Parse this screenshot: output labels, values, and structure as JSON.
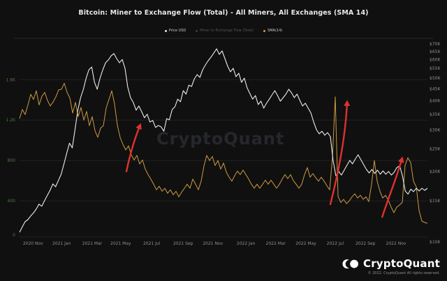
{
  "header": {
    "title": "Bitcoin: Miner to Exchange Flow (Total) - All Miners, All Exchanges (SMA 14)"
  },
  "legend": {
    "items": [
      {
        "label": "Price USD",
        "color": "#e8e8e8",
        "active": true
      },
      {
        "label": "Miner to Exchange Flow (Total)",
        "color": "#3d3d3d",
        "active": false
      },
      {
        "label": "SMA(14)",
        "color": "#d29b43",
        "active": true
      }
    ]
  },
  "watermark": {
    "text": "CryptoQuant"
  },
  "footer": {
    "brand": "CryptoQuant",
    "copyright": "© 2022. CryptoQuant All rights reserved."
  },
  "theme": {
    "background": "#101010",
    "grid": "#222222",
    "rule": "#282828",
    "axis_text": "#8f8f8f",
    "left_axis_text": "#4d7a44",
    "price_color": "#ececec",
    "sma_color": "#cd9a44",
    "arrow_color": "#e0312e"
  },
  "chart_data": {
    "type": "line",
    "title": "Bitcoin: Miner to Exchange Flow (Total) - All Miners, All Exchanges (SMA 14)",
    "x_range": "Oct 2020 - Dec 2022",
    "grid": "horizontal",
    "legend_position": "top-center",
    "x_axis": {
      "ticks": [
        {
          "label": "2020 Nov",
          "f": 0.033
        },
        {
          "label": "2021 Jan",
          "f": 0.103
        },
        {
          "label": "2021 Mar",
          "f": 0.178
        },
        {
          "label": "2021 May",
          "f": 0.248
        },
        {
          "label": "2021 Jul",
          "f": 0.324
        },
        {
          "label": "2021 Sep",
          "f": 0.401
        },
        {
          "label": "2021 Nov",
          "f": 0.474
        },
        {
          "label": "2022 Jan",
          "f": 0.555
        },
        {
          "label": "2022 Mar",
          "f": 0.628
        },
        {
          "label": "2022 May",
          "f": 0.702
        },
        {
          "label": "2022 Jul",
          "f": 0.774
        },
        {
          "label": "2022 Sep",
          "f": 0.848
        },
        {
          "label": "2022 Nov",
          "f": 0.923
        }
      ]
    },
    "left_axis": {
      "scale": "linear",
      "range": [
        0,
        1960
      ],
      "ticks": [
        {
          "label": "1.6K",
          "value": 1600
        },
        {
          "label": "1.2K",
          "value": 1200
        },
        {
          "label": "800",
          "value": 800
        },
        {
          "label": "400",
          "value": 400
        },
        {
          "label": "0",
          "value": 0
        }
      ]
    },
    "right_axis": {
      "scale": "log",
      "range": [
        9500,
        71500
      ],
      "ticks": [
        {
          "label": "$70K",
          "value": 70000
        },
        {
          "label": "$65K",
          "value": 65000
        },
        {
          "label": "$60K",
          "value": 60000
        },
        {
          "label": "$55K",
          "value": 55000
        },
        {
          "label": "$50K",
          "value": 50000
        },
        {
          "label": "$45K",
          "value": 45000
        },
        {
          "label": "$40K",
          "value": 40000
        },
        {
          "label": "$35K",
          "value": 35000
        },
        {
          "label": "$30K",
          "value": 30000
        },
        {
          "label": "$25K",
          "value": 25000
        },
        {
          "label": "$20K",
          "value": 20000
        },
        {
          "label": "$15K",
          "value": 15000
        },
        {
          "label": "$10K",
          "value": 10000
        }
      ]
    },
    "series": [
      {
        "name": "Price USD",
        "axis": "right",
        "unit": "USD",
        "sampling": "uniform across x_range",
        "values": [
          11000,
          11600,
          12200,
          12450,
          12900,
          13300,
          13800,
          14500,
          14200,
          15000,
          15800,
          16600,
          17700,
          17200,
          18300,
          19450,
          21550,
          23900,
          26400,
          25200,
          30300,
          36500,
          41300,
          44850,
          50000,
          54350,
          55800,
          48000,
          44850,
          50000,
          54350,
          58200,
          59800,
          62300,
          63700,
          60650,
          58200,
          60100,
          55100,
          45800,
          41300,
          39350,
          36500,
          38050,
          36000,
          33900,
          35100,
          32500,
          33000,
          30800,
          31400,
          31000,
          29700,
          33600,
          33200,
          36750,
          37800,
          40700,
          39650,
          44250,
          42750,
          46700,
          46100,
          49700,
          51800,
          50400,
          54350,
          57000,
          59400,
          61500,
          64000,
          66750,
          63200,
          65400,
          60650,
          56250,
          53250,
          55100,
          50750,
          52500,
          48000,
          50000,
          45500,
          43050,
          40700,
          42150,
          38600,
          39900,
          37250,
          39100,
          40700,
          42450,
          44250,
          42150,
          39900,
          41300,
          42750,
          44850,
          43350,
          41300,
          42750,
          40200,
          38050,
          39100,
          37250,
          35550,
          32500,
          30150,
          28950,
          29700,
          28550,
          29300,
          28150,
          22300,
          19150,
          20000,
          19300,
          20250,
          21250,
          22300,
          21550,
          22600,
          23550,
          22450,
          21400,
          20400,
          19700,
          20400,
          19600,
          20250,
          19450,
          20100,
          19450,
          20000,
          19300,
          19850,
          20800,
          21100,
          19150,
          16500,
          16000,
          16800,
          16400,
          16950,
          16500,
          16950,
          16600,
          16950
        ]
      },
      {
        "name": "SMA(14)",
        "axis": "left",
        "unit": "BTC flow (SMA 14)",
        "sampling": "uniform across x_range",
        "values": [
          1215,
          1305,
          1255,
          1350,
          1455,
          1405,
          1490,
          1350,
          1435,
          1475,
          1395,
          1340,
          1380,
          1430,
          1500,
          1505,
          1565,
          1475,
          1420,
          1270,
          1375,
          1235,
          1325,
          1200,
          1285,
          1145,
          1235,
          1095,
          1030,
          1120,
          1145,
          1320,
          1405,
          1490,
          1360,
          1150,
          1030,
          960,
          905,
          945,
          855,
          805,
          850,
          765,
          805,
          715,
          660,
          615,
          565,
          510,
          545,
          495,
          525,
          475,
          510,
          460,
          495,
          440,
          485,
          525,
          565,
          525,
          615,
          565,
          510,
          595,
          745,
          850,
          800,
          840,
          750,
          800,
          715,
          775,
          685,
          635,
          595,
          650,
          695,
          660,
          705,
          660,
          615,
          565,
          525,
          565,
          525,
          565,
          605,
          565,
          605,
          565,
          525,
          565,
          615,
          660,
          620,
          660,
          600,
          565,
          525,
          565,
          660,
          730,
          635,
          670,
          630,
          595,
          635,
          595,
          550,
          510,
          830,
          1430,
          445,
          385,
          415,
          373,
          400,
          440,
          470,
          428,
          455,
          415,
          440,
          393,
          565,
          800,
          595,
          495,
          428,
          455,
          407,
          338,
          283,
          338,
          359,
          386,
          752,
          828,
          780,
          593,
          540,
          305,
          200,
          186,
          179
        ]
      }
    ],
    "annotations": [
      {
        "type": "arrow",
        "from": [
          0.262,
          0.664
        ],
        "c1": [
          0.274,
          0.545
        ],
        "c2": [
          0.289,
          0.46
        ],
        "to": [
          0.296,
          0.425
        ]
      },
      {
        "type": "arrow",
        "from": [
          0.762,
          0.832
        ],
        "c1": [
          0.778,
          0.7
        ],
        "c2": [
          0.799,
          0.5
        ],
        "to": [
          0.803,
          0.307
        ]
      },
      {
        "type": "arrow",
        "from": [
          0.889,
          0.897
        ],
        "c1": [
          0.904,
          0.8
        ],
        "c2": [
          0.924,
          0.7
        ],
        "to": [
          0.938,
          0.596
        ]
      }
    ]
  }
}
